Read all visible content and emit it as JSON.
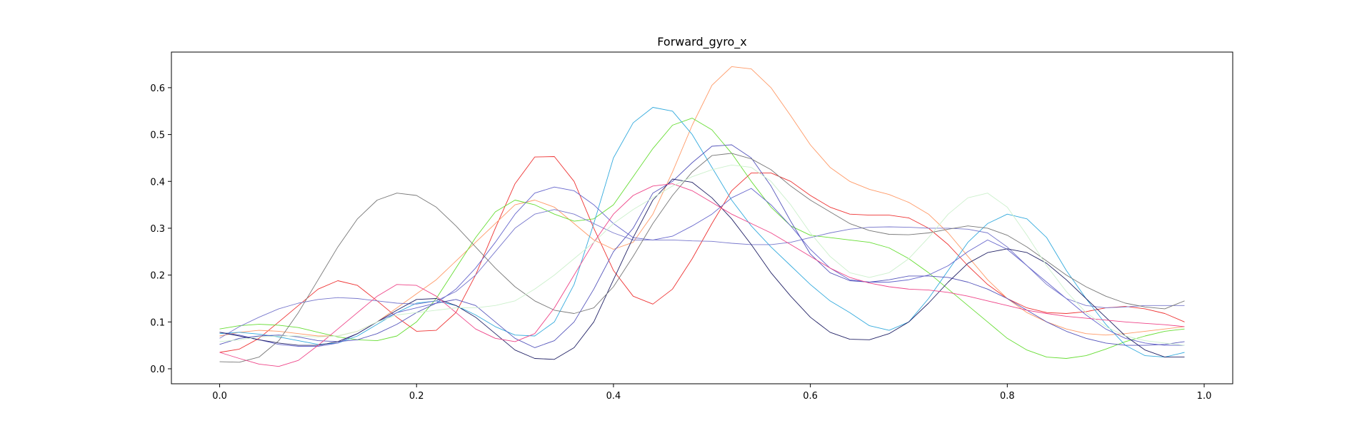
{
  "chart_data": {
    "type": "line",
    "title": "Forward_gyro_x",
    "xlabel": "",
    "ylabel": "",
    "xlim": [
      -0.049,
      1.029
    ],
    "ylim": [
      -0.032,
      0.676
    ],
    "xticks": [
      0.0,
      0.2,
      0.4,
      0.6,
      0.8,
      1.0
    ],
    "xtick_labels": [
      "0.0",
      "0.2",
      "0.4",
      "0.6",
      "0.8",
      "1.0"
    ],
    "yticks": [
      0.0,
      0.1,
      0.2,
      0.3,
      0.4,
      0.5,
      0.6
    ],
    "ytick_labels": [
      "0.0",
      "0.1",
      "0.2",
      "0.3",
      "0.4",
      "0.5",
      "0.6"
    ],
    "grid": false,
    "legend": false,
    "x": [
      0.0,
      0.02,
      0.04,
      0.06,
      0.08,
      0.1,
      0.12,
      0.14,
      0.16,
      0.18,
      0.2,
      0.22,
      0.24,
      0.26,
      0.28,
      0.3,
      0.32,
      0.34,
      0.36,
      0.38,
      0.4,
      0.42,
      0.44,
      0.46,
      0.48,
      0.5,
      0.52,
      0.54,
      0.56,
      0.58,
      0.6,
      0.62,
      0.64,
      0.66,
      0.68,
      0.7,
      0.72,
      0.74,
      0.76,
      0.78,
      0.8,
      0.82,
      0.84,
      0.86,
      0.88,
      0.9,
      0.92,
      0.94,
      0.96,
      0.98
    ],
    "series": [
      {
        "color": "#ee3333",
        "values": [
          0.035,
          0.042,
          0.065,
          0.1,
          0.135,
          0.17,
          0.188,
          0.178,
          0.145,
          0.11,
          0.08,
          0.082,
          0.12,
          0.2,
          0.3,
          0.395,
          0.452,
          0.453,
          0.4,
          0.3,
          0.21,
          0.155,
          0.138,
          0.17,
          0.235,
          0.31,
          0.38,
          0.418,
          0.418,
          0.4,
          0.37,
          0.345,
          0.33,
          0.328,
          0.328,
          0.322,
          0.3,
          0.265,
          0.22,
          0.18,
          0.15,
          0.13,
          0.12,
          0.118,
          0.122,
          0.13,
          0.133,
          0.128,
          0.118,
          0.1
        ]
      },
      {
        "color": "#ff9966",
        "values": [
          0.07,
          0.078,
          0.082,
          0.08,
          0.075,
          0.07,
          0.07,
          0.08,
          0.1,
          0.13,
          0.16,
          0.19,
          0.23,
          0.27,
          0.31,
          0.35,
          0.36,
          0.345,
          0.31,
          0.275,
          0.255,
          0.27,
          0.33,
          0.42,
          0.52,
          0.605,
          0.645,
          0.64,
          0.6,
          0.54,
          0.478,
          0.43,
          0.4,
          0.383,
          0.372,
          0.355,
          0.33,
          0.29,
          0.24,
          0.19,
          0.15,
          0.12,
          0.1,
          0.085,
          0.075,
          0.072,
          0.075,
          0.08,
          0.085,
          0.09
        ]
      },
      {
        "color": "#66dd33",
        "values": [
          0.085,
          0.092,
          0.095,
          0.093,
          0.088,
          0.078,
          0.068,
          0.062,
          0.06,
          0.07,
          0.1,
          0.15,
          0.215,
          0.28,
          0.335,
          0.36,
          0.35,
          0.33,
          0.315,
          0.32,
          0.35,
          0.41,
          0.47,
          0.52,
          0.535,
          0.51,
          0.46,
          0.4,
          0.345,
          0.305,
          0.285,
          0.28,
          0.275,
          0.27,
          0.258,
          0.235,
          0.205,
          0.17,
          0.135,
          0.1,
          0.065,
          0.04,
          0.025,
          0.022,
          0.028,
          0.042,
          0.058,
          0.07,
          0.08,
          0.085
        ]
      },
      {
        "color": "#33aadd",
        "values": [
          0.075,
          0.078,
          0.074,
          0.068,
          0.06,
          0.052,
          0.055,
          0.07,
          0.095,
          0.12,
          0.14,
          0.145,
          0.135,
          0.115,
          0.09,
          0.072,
          0.07,
          0.1,
          0.18,
          0.31,
          0.45,
          0.525,
          0.558,
          0.55,
          0.5,
          0.43,
          0.36,
          0.305,
          0.26,
          0.22,
          0.18,
          0.145,
          0.12,
          0.092,
          0.082,
          0.1,
          0.15,
          0.21,
          0.27,
          0.31,
          0.33,
          0.32,
          0.28,
          0.21,
          0.15,
          0.095,
          0.05,
          0.028,
          0.025,
          0.035
        ]
      },
      {
        "color": "#6666cc",
        "values": [
          0.078,
          0.072,
          0.062,
          0.052,
          0.048,
          0.048,
          0.055,
          0.075,
          0.1,
          0.12,
          0.13,
          0.14,
          0.17,
          0.215,
          0.27,
          0.33,
          0.375,
          0.388,
          0.38,
          0.35,
          0.31,
          0.28,
          0.275,
          0.283,
          0.305,
          0.33,
          0.365,
          0.385,
          0.35,
          0.305,
          0.255,
          0.215,
          0.19,
          0.185,
          0.185,
          0.19,
          0.2,
          0.22,
          0.25,
          0.275,
          0.255,
          0.22,
          0.185,
          0.15,
          0.115,
          0.085,
          0.065,
          0.055,
          0.05,
          0.05
        ]
      },
      {
        "color": "#5555bb",
        "values": [
          0.052,
          0.065,
          0.07,
          0.072,
          0.068,
          0.06,
          0.058,
          0.062,
          0.075,
          0.095,
          0.12,
          0.14,
          0.148,
          0.135,
          0.1,
          0.065,
          0.045,
          0.06,
          0.1,
          0.17,
          0.25,
          0.3,
          0.375,
          0.4,
          0.44,
          0.475,
          0.478,
          0.45,
          0.39,
          0.315,
          0.245,
          0.205,
          0.188,
          0.185,
          0.19,
          0.198,
          0.198,
          0.195,
          0.185,
          0.17,
          0.15,
          0.125,
          0.1,
          0.08,
          0.065,
          0.055,
          0.05,
          0.05,
          0.052,
          0.058
        ]
      },
      {
        "color": "#7777cc",
        "values": [
          0.065,
          0.09,
          0.11,
          0.128,
          0.14,
          0.148,
          0.152,
          0.15,
          0.145,
          0.14,
          0.138,
          0.145,
          0.165,
          0.2,
          0.25,
          0.3,
          0.33,
          0.34,
          0.33,
          0.31,
          0.29,
          0.275,
          0.275,
          0.275,
          0.273,
          0.272,
          0.268,
          0.265,
          0.265,
          0.27,
          0.28,
          0.29,
          0.298,
          0.302,
          0.303,
          0.302,
          0.3,
          0.3,
          0.298,
          0.29,
          0.26,
          0.22,
          0.18,
          0.15,
          0.135,
          0.13,
          0.132,
          0.135,
          0.135,
          0.135
        ]
      },
      {
        "color": "#222266",
        "values": [
          0.078,
          0.07,
          0.062,
          0.055,
          0.05,
          0.05,
          0.058,
          0.075,
          0.1,
          0.125,
          0.148,
          0.15,
          0.135,
          0.11,
          0.075,
          0.04,
          0.022,
          0.02,
          0.045,
          0.1,
          0.19,
          0.28,
          0.36,
          0.405,
          0.398,
          0.365,
          0.32,
          0.265,
          0.205,
          0.155,
          0.11,
          0.078,
          0.063,
          0.062,
          0.075,
          0.1,
          0.14,
          0.185,
          0.225,
          0.248,
          0.256,
          0.248,
          0.225,
          0.19,
          0.15,
          0.11,
          0.07,
          0.04,
          0.025,
          0.025
        ]
      },
      {
        "color": "#777777",
        "values": [
          0.015,
          0.014,
          0.025,
          0.06,
          0.12,
          0.19,
          0.26,
          0.32,
          0.36,
          0.375,
          0.37,
          0.345,
          0.305,
          0.26,
          0.215,
          0.175,
          0.145,
          0.125,
          0.118,
          0.13,
          0.175,
          0.24,
          0.31,
          0.37,
          0.42,
          0.455,
          0.46,
          0.448,
          0.425,
          0.39,
          0.36,
          0.335,
          0.31,
          0.295,
          0.287,
          0.286,
          0.29,
          0.298,
          0.305,
          0.3,
          0.285,
          0.26,
          0.23,
          0.2,
          0.175,
          0.155,
          0.14,
          0.132,
          0.128,
          0.145
        ]
      },
      {
        "color": "#ee4488",
        "values": [
          0.035,
          0.022,
          0.01,
          0.005,
          0.018,
          0.05,
          0.085,
          0.12,
          0.155,
          0.18,
          0.178,
          0.155,
          0.12,
          0.085,
          0.065,
          0.058,
          0.075,
          0.13,
          0.2,
          0.27,
          0.33,
          0.37,
          0.39,
          0.395,
          0.38,
          0.355,
          0.33,
          0.31,
          0.29,
          0.265,
          0.24,
          0.215,
          0.195,
          0.183,
          0.175,
          0.17,
          0.168,
          0.163,
          0.155,
          0.145,
          0.135,
          0.125,
          0.118,
          0.112,
          0.108,
          0.104,
          0.1,
          0.097,
          0.094,
          0.09
        ]
      },
      {
        "color": "#ccf0cc",
        "values": [
          0.058,
          0.062,
          0.068,
          0.07,
          0.07,
          0.068,
          0.07,
          0.08,
          0.1,
          0.115,
          0.12,
          0.125,
          0.13,
          0.13,
          0.135,
          0.145,
          0.17,
          0.2,
          0.235,
          0.27,
          0.31,
          0.34,
          0.365,
          0.39,
          0.41,
          0.425,
          0.435,
          0.43,
          0.4,
          0.35,
          0.29,
          0.24,
          0.205,
          0.195,
          0.205,
          0.235,
          0.28,
          0.33,
          0.365,
          0.375,
          0.345,
          0.285,
          0.22,
          0.165,
          0.12,
          0.09,
          0.07,
          0.06,
          0.055,
          0.05
        ]
      }
    ]
  }
}
